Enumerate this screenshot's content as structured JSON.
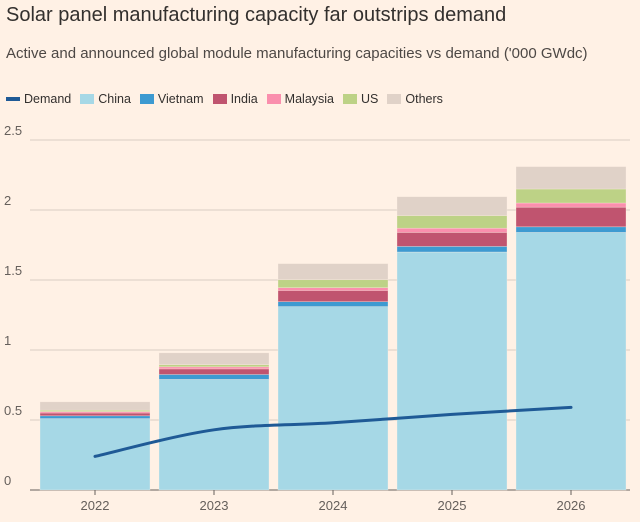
{
  "chart_data": {
    "type": "bar",
    "title": "Solar panel manufacturing capacity far outstrips demand",
    "subtitle": "Active and announced global module manufacturing capacities vs demand ('000 GWdc)",
    "categories": [
      "2022",
      "2023",
      "2024",
      "2025",
      "2026"
    ],
    "ylim": [
      0,
      2.5
    ],
    "yticks": [
      "0",
      "0.5",
      "1",
      "1.5",
      "2",
      "2.5"
    ],
    "series": [
      {
        "name": "China",
        "color": "#a6d8e6",
        "values": [
          0.51,
          0.79,
          1.31,
          1.7,
          1.84
        ]
      },
      {
        "name": "Vietnam",
        "color": "#3d9ad1",
        "values": [
          0.02,
          0.035,
          0.035,
          0.04,
          0.04
        ]
      },
      {
        "name": "India",
        "color": "#c0546f",
        "values": [
          0.02,
          0.04,
          0.08,
          0.1,
          0.14
        ]
      },
      {
        "name": "Malaysia",
        "color": "#fa8fad",
        "values": [
          0.01,
          0.015,
          0.02,
          0.03,
          0.03
        ]
      },
      {
        "name": "US",
        "color": "#bdd286",
        "values": [
          0.01,
          0.015,
          0.057,
          0.09,
          0.1
        ]
      },
      {
        "name": "Others",
        "color": "#e0d2c8",
        "values": [
          0.06,
          0.085,
          0.115,
          0.135,
          0.16
        ]
      }
    ],
    "line": {
      "name": "Demand",
      "color": "#1f5a96",
      "values": [
        0.24,
        0.43,
        0.48,
        0.54,
        0.59
      ]
    },
    "legend_order": [
      "Demand",
      "China",
      "Vietnam",
      "India",
      "Malaysia",
      "US",
      "Others"
    ],
    "legend_position": "top-left",
    "grid": true
  }
}
